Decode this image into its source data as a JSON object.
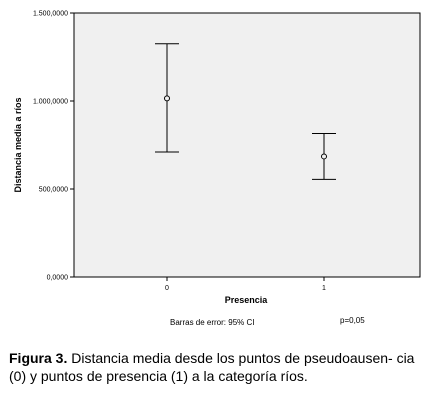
{
  "chart_data": {
    "type": "errorbar",
    "xlabel": "Presencia",
    "ylabel": "Distancia media a ríos",
    "categories": [
      "0",
      "1"
    ],
    "y_ticks": [
      0,
      500,
      1000,
      1500
    ],
    "y_tick_labels": [
      "0,0000",
      "500,0000",
      "1.000,0000",
      "1.500,0000"
    ],
    "ylim": [
      0,
      1500
    ],
    "points": [
      {
        "category": "0",
        "mean": 1015,
        "lower": 710,
        "upper": 1325
      },
      {
        "category": "1",
        "mean": 685,
        "lower": 555,
        "upper": 815
      }
    ],
    "grid": false,
    "footnote_left": "Barras de error: 95% CI",
    "footnote_right": "p=0,05",
    "colors": {
      "plot_background": "#f0f0f0",
      "marks": "#000000"
    }
  },
  "caption": {
    "label": "Figura 3.",
    "text": " Distancia media desde los puntos de pseudoausen- cia (0) y puntos de presencia (1) a la categoría ríos."
  }
}
